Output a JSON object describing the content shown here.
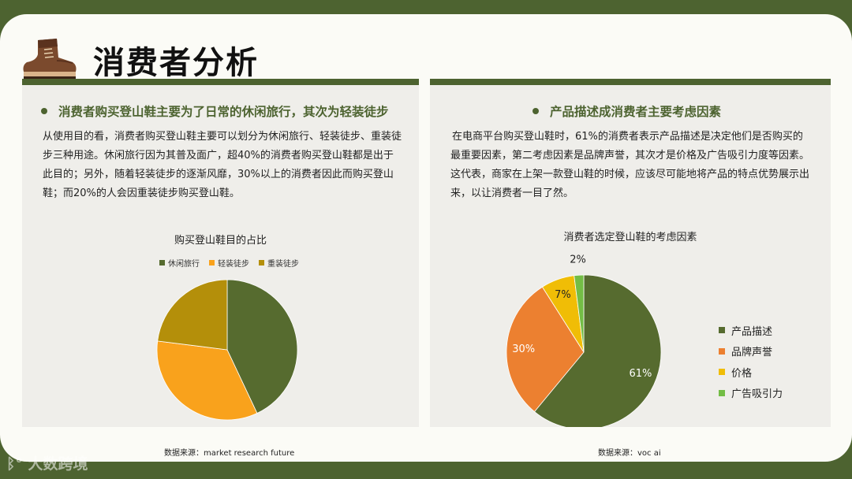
{
  "slide": {
    "title": "消费者分析",
    "icon": "hiking-boot-icon"
  },
  "left_panel": {
    "heading": "消费者购买登山鞋主要为了日常的休闲旅行，其次为轻装徒步",
    "body": "从使用目的看，消费者购买登山鞋主要可以划分为休闲旅行、轻装徒步、重装徒步三种用途。休闲旅行因为其普及面广，超40%的消费者购买登山鞋都是出于此目的；另外，随着轻装徒步的逐渐风靡，30%以上的消费者因此而购买登山鞋；而20%的人会因重装徒步购买登山鞋。",
    "source": "数据来源：market research future"
  },
  "right_panel": {
    "heading": "产品描述成消费者主要考虑因素",
    "body": "在电商平台购买登山鞋时，61%的消费者表示产品描述是决定他们是否购买的最重要因素，第二考虑因素是品牌声誉，其次才是价格及广告吸引力度等因素。这代表，商家在上架一款登山鞋的时候，应该尽可能地将产品的特点优势展示出来，以让消费者一目了然。",
    "source": "数据来源：voc ai"
  },
  "watermark": "大数跨境",
  "chart_data": [
    {
      "type": "pie",
      "title": "购买登山鞋目的占比",
      "categories": [
        "休闲旅行",
        "轻装徒步",
        "重装徒步"
      ],
      "values": [
        43,
        34,
        23
      ],
      "colors": [
        "#566b2f",
        "#f9a21c",
        "#b48f0a"
      ],
      "data_labels": false,
      "legend_position": "top"
    },
    {
      "type": "pie",
      "title": "消费者选定登山鞋的考虑因素",
      "categories": [
        "产品描述",
        "品牌声誉",
        "价格",
        "广告吸引力"
      ],
      "values": [
        61,
        30,
        7,
        2
      ],
      "labels": [
        "61%",
        "30%",
        "7%",
        "2%"
      ],
      "colors": [
        "#566b2f",
        "#ec8030",
        "#f0bd06",
        "#73bd45"
      ],
      "label_colors": [
        "#ffffff",
        "#ffffff",
        "#222222",
        "#222222"
      ],
      "legend_position": "right"
    }
  ]
}
